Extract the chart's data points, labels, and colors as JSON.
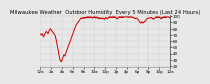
{
  "title": "Milwaukee Weather  Outdoor Humidity  Every 5 Minutes (Last 24 Hours)",
  "bg_color": "#e8e8e8",
  "plot_bg_color": "#e8e8e8",
  "grid_color": "#aaaaaa",
  "line_color": "#cc0000",
  "line_width": 0.7,
  "ylim": [
    18,
    102
  ],
  "yticks": [
    20,
    30,
    40,
    50,
    60,
    70,
    80,
    90,
    100
  ],
  "humidity": [
    72,
    71,
    70,
    71,
    72,
    70,
    68,
    67,
    68,
    70,
    72,
    73,
    74,
    76,
    75,
    74,
    73,
    72,
    74,
    76,
    78,
    79,
    80,
    79,
    78,
    77,
    76,
    75,
    74,
    73,
    72,
    71,
    70,
    68,
    65,
    62,
    58,
    54,
    50,
    46,
    42,
    38,
    34,
    31,
    29,
    28,
    27,
    28,
    30,
    32,
    34,
    36,
    38,
    37,
    36,
    38,
    40,
    42,
    44,
    46,
    48,
    50,
    52,
    54,
    56,
    58,
    60,
    62,
    64,
    66,
    68,
    70,
    72,
    74,
    76,
    78,
    80,
    82,
    84,
    86,
    87,
    88,
    89,
    90,
    91,
    92,
    93,
    94,
    95,
    96,
    97,
    97,
    96,
    97,
    97,
    98,
    97,
    98,
    97,
    98,
    98,
    97,
    98,
    99,
    98,
    99,
    98,
    99,
    98,
    98,
    99,
    98,
    99,
    99,
    98,
    97,
    97,
    98,
    99,
    99,
    98,
    99,
    98,
    97,
    98,
    99,
    98,
    97,
    96,
    97,
    98,
    97,
    96,
    97,
    97,
    96,
    97,
    97,
    96,
    97,
    97,
    96,
    95,
    96,
    97,
    98,
    97,
    97,
    96,
    96,
    97,
    98,
    99,
    98,
    99,
    98,
    99,
    98,
    99,
    98,
    99,
    99,
    98,
    99,
    99,
    98,
    99,
    98,
    97,
    97,
    96,
    96,
    97,
    98,
    99,
    99,
    98,
    99,
    98,
    99,
    98,
    99,
    98,
    99,
    98,
    99,
    99,
    99,
    99,
    99,
    99,
    99,
    99,
    99,
    98,
    99,
    99,
    99,
    98,
    99,
    99,
    99,
    99,
    98,
    99,
    98,
    98,
    97,
    97,
    97,
    96,
    97,
    97,
    97,
    96,
    96,
    95,
    94,
    93,
    92,
    91,
    90,
    89,
    90,
    91,
    91,
    90,
    89,
    90,
    90,
    91,
    92,
    92,
    93,
    94,
    95,
    96,
    96,
    97,
    97,
    97,
    97,
    97,
    97,
    98,
    98,
    98,
    97,
    97,
    96,
    95,
    96,
    96,
    97,
    97,
    98,
    99,
    98,
    99,
    98,
    99,
    99,
    98,
    98,
    99,
    98,
    97,
    96,
    97,
    98,
    97,
    98,
    99,
    99,
    98,
    99,
    98,
    99,
    99,
    98,
    99,
    99,
    99,
    99,
    99,
    98,
    98,
    97
  ],
  "title_fontsize": 3.8,
  "tick_fontsize": 3.0,
  "xtick_labels": [
    "12a",
    "2a",
    "4a",
    "6a",
    "8a",
    "10a",
    "12p",
    "2p",
    "4p",
    "6p",
    "8p",
    "10p",
    "12a"
  ]
}
